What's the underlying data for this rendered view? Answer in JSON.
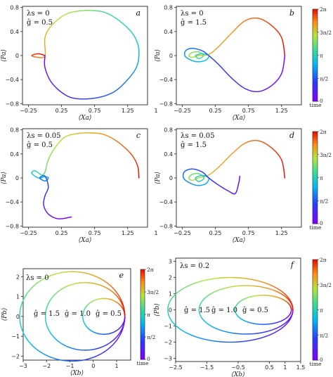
{
  "chart_data": [
    {
      "id": "a",
      "type": "line",
      "panel_label": "a",
      "annotations": [
        "λs = 0",
        "ĝ = 0.5"
      ],
      "xlabel": "⟨Xa⟩",
      "ylabel": "⟨Pa⟩",
      "xlim": [
        -0.34,
        1.55
      ],
      "ylim": [
        -0.82,
        0.82
      ],
      "xticks": [
        -0.25,
        0.25,
        0.75,
        1.25
      ],
      "xtick_labels": [
        "−0.25",
        "0.25",
        "0.75",
        "1.25"
      ],
      "yticks": [
        -0.8,
        -0.4,
        0,
        0.4,
        0.8
      ],
      "ytick_labels": [
        "−0.8",
        "−0.4",
        "0",
        "0.4",
        "0.8"
      ],
      "extra_xtick_label": "1",
      "series": [
        {
          "pts": [
            [
              0.0,
              0.0
            ],
            [
              -0.1,
              0.03
            ],
            [
              -0.2,
              0.0
            ],
            [
              -0.1,
              -0.03
            ],
            [
              0.0,
              0.0
            ],
            [
              0.0,
              0.3
            ],
            [
              0.1,
              0.5
            ],
            [
              0.3,
              0.68
            ],
            [
              0.5,
              0.74
            ],
            [
              0.7,
              0.75
            ],
            [
              0.9,
              0.72
            ],
            [
              1.1,
              0.6
            ],
            [
              1.3,
              0.4
            ],
            [
              1.4,
              0.2
            ],
            [
              1.42,
              0.0
            ],
            [
              1.38,
              -0.2
            ],
            [
              1.25,
              -0.4
            ],
            [
              1.05,
              -0.6
            ],
            [
              0.8,
              -0.7
            ],
            [
              0.5,
              -0.72
            ],
            [
              0.3,
              -0.65
            ],
            [
              0.1,
              -0.45
            ],
            [
              0.0,
              -0.2
            ],
            [
              0.0,
              0.0
            ]
          ]
        }
      ]
    },
    {
      "id": "b",
      "type": "line",
      "panel_label": "b",
      "annotations": [
        "λs = 0",
        "ĝ = 1.5"
      ],
      "xlabel": "⟨Xa⟩",
      "ylabel": "⟨Pa⟩",
      "xlim": [
        -0.34,
        1.55
      ],
      "ylim": [
        -0.82,
        0.82
      ],
      "xticks": [
        -0.25,
        0.25,
        0.75,
        1.25
      ],
      "xtick_labels": [
        "−0.25",
        "0.25",
        "0.75",
        "1.25"
      ],
      "yticks": [
        -0.8,
        -0.4,
        0,
        0.4,
        0.8
      ],
      "ytick_labels": [
        "−0.8",
        "−0.4",
        "0",
        "0.4",
        "0.8"
      ],
      "colorbar": {
        "label": "time",
        "ticks": [
          "0",
          "π/2",
          "π",
          "3π/2",
          "2π"
        ]
      },
      "series": [
        {
          "pts": [
            [
              1.3,
              0.0
            ],
            [
              1.25,
              0.3
            ],
            [
              1.1,
              0.5
            ],
            [
              0.9,
              0.62
            ],
            [
              0.7,
              0.58
            ],
            [
              0.5,
              0.38
            ],
            [
              0.3,
              0.15
            ],
            [
              0.15,
              0.02
            ],
            [
              0.0,
              0.0
            ],
            [
              -0.1,
              -0.03
            ],
            [
              -0.15,
              0.0
            ],
            [
              -0.1,
              0.05
            ],
            [
              0.0,
              0.06
            ],
            [
              0.07,
              0.0
            ],
            [
              0.0,
              -0.05
            ],
            [
              -0.05,
              0.0
            ],
            [
              0.05,
              0.03
            ],
            [
              0.15,
              0.0
            ],
            [
              0.1,
              -0.08
            ],
            [
              -0.05,
              -0.1
            ],
            [
              -0.2,
              -0.02
            ],
            [
              -0.2,
              0.08
            ],
            [
              -0.1,
              0.12
            ],
            [
              0.05,
              0.08
            ],
            [
              0.15,
              0.0
            ],
            [
              0.3,
              -0.15
            ],
            [
              0.5,
              -0.38
            ],
            [
              0.7,
              -0.55
            ],
            [
              0.9,
              -0.6
            ],
            [
              1.1,
              -0.5
            ],
            [
              1.25,
              -0.3
            ],
            [
              1.3,
              0.0
            ]
          ]
        }
      ]
    },
    {
      "id": "c",
      "type": "line",
      "panel_label": "c",
      "annotations": [
        "λs = 0.05",
        "ĝ = 0.5"
      ],
      "xlabel": "⟨Xa⟩",
      "ylabel": "⟨Pa⟩",
      "xlim": [
        -0.34,
        1.55
      ],
      "ylim": [
        -0.82,
        0.82
      ],
      "xticks": [
        -0.25,
        0.25,
        0.75,
        1.25
      ],
      "xtick_labels": [
        "−0.25",
        "0.25",
        "0.75",
        "1.25"
      ],
      "yticks": [
        -0.8,
        -0.4,
        0,
        0.4,
        0.8
      ],
      "ytick_labels": [
        "−0.8",
        "−0.4",
        "0",
        "0.4",
        "0.8"
      ],
      "extra_xtick_label": "1",
      "series": [
        {
          "pts": [
            [
              1.42,
              0.0
            ],
            [
              1.4,
              0.2
            ],
            [
              1.3,
              0.4
            ],
            [
              1.1,
              0.6
            ],
            [
              0.9,
              0.72
            ],
            [
              0.7,
              0.75
            ],
            [
              0.5,
              0.74
            ],
            [
              0.3,
              0.68
            ],
            [
              0.15,
              0.5
            ],
            [
              0.05,
              0.3
            ],
            [
              0.0,
              0.1
            ],
            [
              -0.05,
              0.05
            ],
            [
              -0.15,
              0.12
            ],
            [
              -0.2,
              0.08
            ],
            [
              -0.1,
              0.0
            ],
            [
              0.0,
              0.02
            ],
            [
              0.05,
              0.0
            ],
            [
              0.0,
              -0.05
            ],
            [
              -0.08,
              0.0
            ],
            [
              0.0,
              0.03
            ],
            [
              0.05,
              -0.15
            ],
            [
              0.0,
              -0.3
            ],
            [
              -0.02,
              -0.45
            ],
            [
              0.05,
              -0.6
            ],
            [
              0.2,
              -0.68
            ],
            [
              0.4,
              -0.65
            ]
          ]
        }
      ]
    },
    {
      "id": "d",
      "type": "line",
      "panel_label": "d",
      "annotations": [
        "λs = 0.05",
        "ĝ = 1.5"
      ],
      "xlabel": "⟨Xa⟩",
      "ylabel": "⟨Pa⟩",
      "xlim": [
        -0.34,
        1.55
      ],
      "ylim": [
        -0.82,
        0.82
      ],
      "xticks": [
        -0.25,
        0.25,
        0.75,
        1.25
      ],
      "xtick_labels": [
        "−0.25",
        "0.25",
        "0.75",
        "1.25"
      ],
      "yticks": [
        -0.8,
        -0.4,
        0,
        0.4,
        0.8
      ],
      "ytick_labels": [
        "−0.8",
        "−0.4",
        "0",
        "0.4",
        "0.8"
      ],
      "colorbar": {
        "label": "time",
        "ticks": [
          "0",
          "π/2",
          "π",
          "3π/2",
          "2π"
        ]
      },
      "series": [
        {
          "pts": [
            [
              1.3,
              0.0
            ],
            [
              1.25,
              0.3
            ],
            [
              1.1,
              0.5
            ],
            [
              0.9,
              0.62
            ],
            [
              0.7,
              0.58
            ],
            [
              0.5,
              0.4
            ],
            [
              0.3,
              0.18
            ],
            [
              0.15,
              0.05
            ],
            [
              0.0,
              0.0
            ],
            [
              -0.1,
              -0.04
            ],
            [
              -0.15,
              0.0
            ],
            [
              -0.1,
              0.06
            ],
            [
              0.0,
              0.07
            ],
            [
              0.08,
              0.0
            ],
            [
              0.0,
              -0.06
            ],
            [
              -0.05,
              0.0
            ],
            [
              0.05,
              0.04
            ],
            [
              0.15,
              0.0
            ],
            [
              0.1,
              -0.1
            ],
            [
              -0.05,
              -0.12
            ],
            [
              -0.22,
              -0.02
            ],
            [
              -0.22,
              0.1
            ],
            [
              -0.1,
              0.15
            ],
            [
              0.05,
              0.1
            ],
            [
              0.15,
              0.0
            ],
            [
              0.3,
              -0.12
            ],
            [
              0.45,
              -0.22
            ],
            [
              0.55,
              -0.26
            ],
            [
              0.6,
              -0.1
            ],
            [
              0.62,
              0.03
            ]
          ]
        }
      ]
    },
    {
      "id": "e",
      "type": "line",
      "panel_label": "e",
      "annotations": [
        "λs = 0",
        "ĝ = 1.5",
        "ĝ = 1.0",
        "ĝ = 0.5"
      ],
      "xlabel": "⟨Xb⟩",
      "ylabel": "⟨Pb⟩",
      "xlim": [
        -3.0,
        1.6
      ],
      "ylim": [
        -2.2,
        2.4
      ],
      "xticks": [
        -3,
        -2,
        -1,
        0,
        1
      ],
      "xtick_labels": [
        "−3",
        "−2",
        "−1",
        "0",
        "1"
      ],
      "yticks": [
        -2,
        -1,
        0,
        1,
        2
      ],
      "ytick_labels": [
        "−2",
        "−1",
        "0",
        "1",
        "2"
      ],
      "colorbar": {
        "label": "time",
        "ticks": [
          "0",
          "π/2",
          "π",
          "3π/2",
          "2π"
        ]
      },
      "series": [
        {
          "name": "ĝ = 1.5",
          "center": [
            -0.9,
            0.0
          ],
          "radius": 2.25
        },
        {
          "name": "ĝ = 1.0",
          "center": [
            -0.35,
            0.0
          ],
          "radius": 1.7
        },
        {
          "name": "ĝ = 0.5",
          "center": [
            0.45,
            0.0
          ],
          "radius": 0.9
        }
      ]
    },
    {
      "id": "f",
      "type": "line",
      "panel_label": "f",
      "annotations": [
        "λs = 0.2",
        "ĝ = 1.5",
        "ĝ = 1.0",
        "ĝ = 0.5"
      ],
      "xlabel": "⟨Xb⟩",
      "ylabel": "⟨Pb⟩",
      "xlim": [
        -2.5,
        1.5
      ],
      "ylim": [
        -3.2,
        3.2
      ],
      "xticks": [
        -2.5,
        -1.5,
        -0.5,
        0.5,
        1,
        1.5
      ],
      "xtick_labels": [
        "−2.5",
        "−1.5",
        "−0.5",
        "0.5",
        "1",
        "1.5"
      ],
      "yticks": [
        -3,
        -2,
        -1,
        0,
        1,
        2,
        3
      ],
      "ytick_labels": [
        "−3",
        "−2",
        "−1",
        "0",
        "1",
        "2",
        "3"
      ],
      "colorbar": {
        "label": "time",
        "ticks": [
          "0",
          "π/2",
          "π",
          "3π/2",
          "2π"
        ]
      },
      "series": [
        {
          "name": "ĝ = 1.5",
          "center": [
            -0.75,
            0.0
          ],
          "radius": 2.0
        },
        {
          "name": "ĝ = 1.0",
          "center": [
            -0.25,
            0.0
          ],
          "radius": 1.5
        },
        {
          "name": "ĝ = 0.5",
          "center": [
            0.3,
            0.0
          ],
          "radius": 0.9
        }
      ]
    }
  ]
}
